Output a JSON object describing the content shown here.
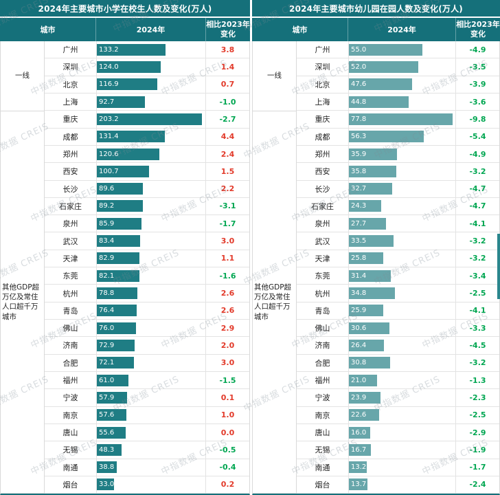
{
  "watermark": "中指数据 CREIS",
  "colors": {
    "header_bg": "#15707a",
    "bar_left": "#1f7d84",
    "bar_right": "#67a6aa",
    "positive": "#e23a2a",
    "negative": "#00a651"
  },
  "chart_data": [
    {
      "type": "bar",
      "title": "2024年主要城市小学在校生人数及变化(万人)",
      "columns": {
        "city": "城市",
        "year": "2024年",
        "change": [
          "相比2023年",
          "变化"
        ]
      },
      "groups": [
        {
          "label": "一线",
          "count": 4
        },
        {
          "label": "其他GDP超万亿及常住人口超千万城市",
          "count": 22
        }
      ],
      "categories": [
        "广州",
        "深圳",
        "北京",
        "上海",
        "重庆",
        "成都",
        "郑州",
        "西安",
        "长沙",
        "石家庄",
        "泉州",
        "武汉",
        "天津",
        "东莞",
        "杭州",
        "青岛",
        "佛山",
        "济南",
        "合肥",
        "福州",
        "宁波",
        "南京",
        "唐山",
        "无锡",
        "南通",
        "烟台"
      ],
      "values": [
        "133.2",
        "124.0",
        "116.9",
        "92.7",
        "203.2",
        "131.4",
        "120.6",
        "100.7",
        "89.6",
        "89.2",
        "85.9",
        "83.4",
        "82.9",
        "82.1",
        "78.8",
        "76.4",
        "76.0",
        "72.9",
        "72.1",
        "61.0",
        "57.9",
        "57.6",
        "55.6",
        "48.3",
        "38.8",
        "33.0"
      ],
      "changes": [
        "3.8",
        "1.4",
        "0.7",
        "-1.0",
        "-2.7",
        "4.4",
        "2.4",
        "1.5",
        "2.2",
        "-3.1",
        "-1.7",
        "3.0",
        "1.1",
        "-1.6",
        "2.6",
        "2.6",
        "2.9",
        "2.0",
        "3.0",
        "-1.5",
        "0.1",
        "1.0",
        "0.0",
        "-0.5",
        "-0.4",
        "0.2"
      ],
      "xlim": [
        0,
        210
      ],
      "bar_color": "#1f7d84",
      "legend": "none",
      "grid": false
    },
    {
      "type": "bar",
      "title": "2024年主要城市幼儿园在园人数及变化(万人)",
      "columns": {
        "city": "城市",
        "year": "2024年",
        "change": [
          "相比2023年",
          "变化"
        ]
      },
      "groups": [
        {
          "label": "一线",
          "count": 4
        },
        {
          "label": "其他GDP超万亿及常住人口超千万城市",
          "count": 22
        }
      ],
      "categories": [
        "广州",
        "深圳",
        "北京",
        "上海",
        "重庆",
        "成都",
        "郑州",
        "西安",
        "长沙",
        "石家庄",
        "泉州",
        "武汉",
        "天津",
        "东莞",
        "杭州",
        "青岛",
        "佛山",
        "济南",
        "合肥",
        "福州",
        "宁波",
        "南京",
        "唐山",
        "无锡",
        "南通",
        "烟台"
      ],
      "values": [
        "55.0",
        "52.0",
        "47.6",
        "44.8",
        "77.8",
        "56.3",
        "35.9",
        "35.8",
        "32.7",
        "24.3",
        "27.7",
        "33.5",
        "25.8",
        "31.4",
        "34.8",
        "25.9",
        "30.6",
        "26.4",
        "30.8",
        "21.0",
        "23.9",
        "22.6",
        "16.0",
        "16.7",
        "13.2",
        "13.7"
      ],
      "changes": [
        "-4.9",
        "-3.5",
        "-3.9",
        "-3.6",
        "-9.8",
        "-5.4",
        "-4.9",
        "-3.2",
        "-4.7",
        "-4.7",
        "-4.1",
        "-3.2",
        "-3.2",
        "-3.4",
        "-2.5",
        "-4.1",
        "-3.3",
        "-4.5",
        "-3.2",
        "-1.3",
        "-2.3",
        "-2.5",
        "-2.9",
        "-1.9",
        "-1.7",
        "-2.4"
      ],
      "xlim": [
        0,
        80
      ],
      "bar_color": "#67a6aa",
      "legend": "none",
      "grid": false
    }
  ]
}
